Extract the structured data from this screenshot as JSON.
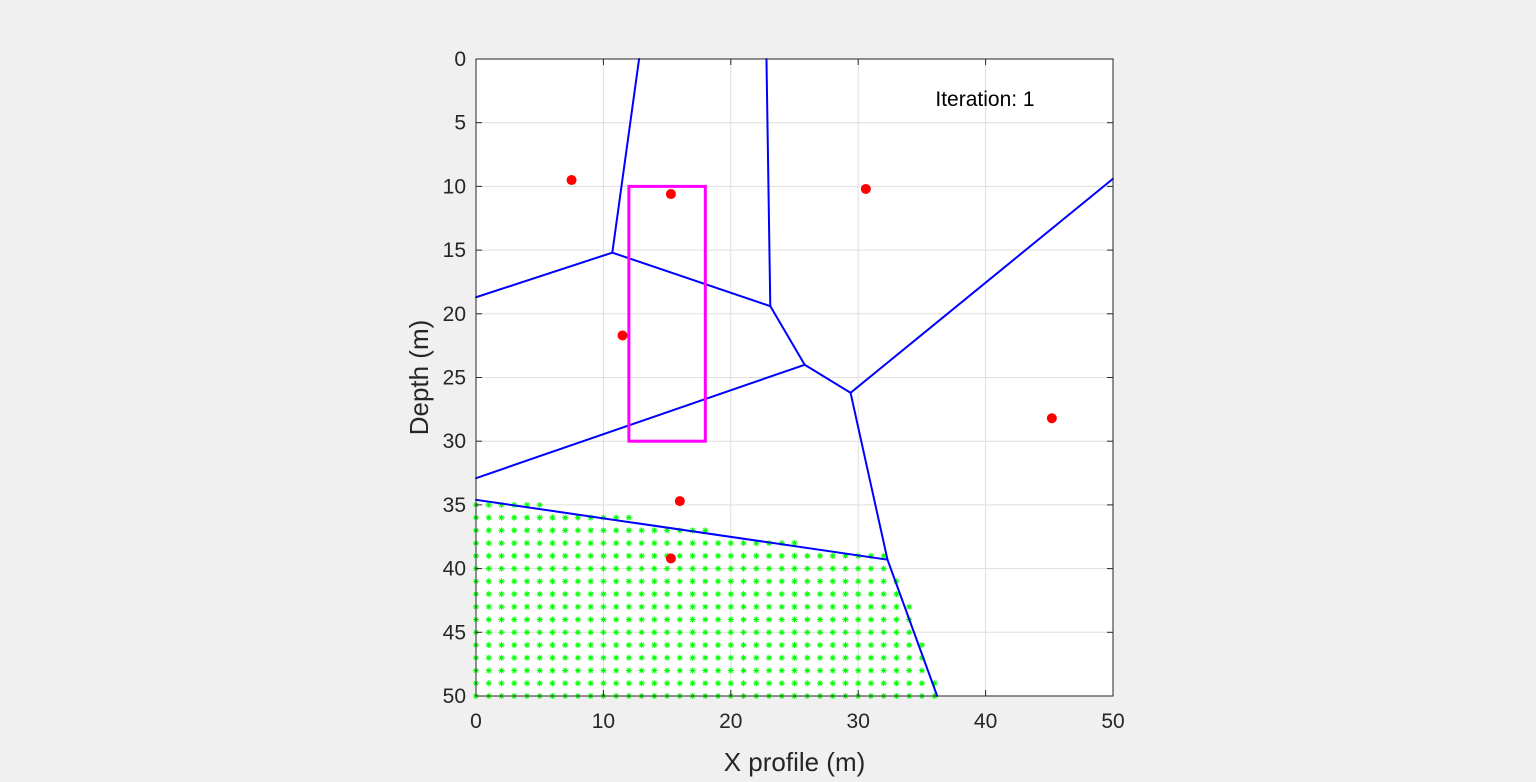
{
  "chart_data": {
    "type": "scatter",
    "title": "",
    "xlabel": "X profile (m)",
    "ylabel": "Depth (m)",
    "xlim": [
      0,
      50
    ],
    "ylim": [
      0,
      50
    ],
    "y_reversed": true,
    "grid": true,
    "xticks": [
      0,
      10,
      20,
      30,
      40,
      50
    ],
    "yticks": [
      0,
      5,
      10,
      15,
      20,
      25,
      30,
      35,
      40,
      45,
      50
    ],
    "annotation": "Iteration: 1",
    "colors": {
      "voronoi": "#0000ff",
      "points": "#ff0000",
      "rectangle": "#ff00ff",
      "grid_markers": "#00ff00",
      "axes_background": "#ffffff",
      "figure_background": "#f0f0f0"
    },
    "points": [
      {
        "x": 7.5,
        "y": 9.5
      },
      {
        "x": 15.3,
        "y": 10.6
      },
      {
        "x": 30.6,
        "y": 10.2
      },
      {
        "x": 11.5,
        "y": 21.7
      },
      {
        "x": 45.2,
        "y": 28.2
      },
      {
        "x": 16.0,
        "y": 34.7
      },
      {
        "x": 15.3,
        "y": 39.2
      }
    ],
    "rectangle": {
      "x0": 12,
      "x1": 18,
      "y0": 10,
      "y1": 30
    },
    "voronoi_segments": [
      [
        [
          12.8,
          0
        ],
        [
          10.7,
          15.2
        ]
      ],
      [
        [
          22.8,
          0
        ],
        [
          23.1,
          19.4
        ]
      ],
      [
        [
          0,
          18.7
        ],
        [
          10.7,
          15.2
        ]
      ],
      [
        [
          10.7,
          15.2
        ],
        [
          23.1,
          19.4
        ]
      ],
      [
        [
          23.1,
          19.4
        ],
        [
          25.8,
          24.0
        ]
      ],
      [
        [
          0,
          32.9
        ],
        [
          25.8,
          24.0
        ]
      ],
      [
        [
          25.8,
          24.0
        ],
        [
          29.4,
          26.2
        ]
      ],
      [
        [
          29.4,
          26.2
        ],
        [
          50,
          9.4
        ]
      ],
      [
        [
          29.4,
          26.2
        ],
        [
          32.3,
          39.3
        ]
      ],
      [
        [
          0,
          34.6
        ],
        [
          32.3,
          39.3
        ]
      ],
      [
        [
          32.3,
          39.3
        ],
        [
          36.2,
          50
        ]
      ]
    ],
    "highlight_region": {
      "description_polygon": [
        [
          0,
          34.6
        ],
        [
          32.3,
          39.3
        ],
        [
          36.2,
          50
        ],
        [
          0,
          50
        ]
      ],
      "grid_spacing": 1
    }
  }
}
